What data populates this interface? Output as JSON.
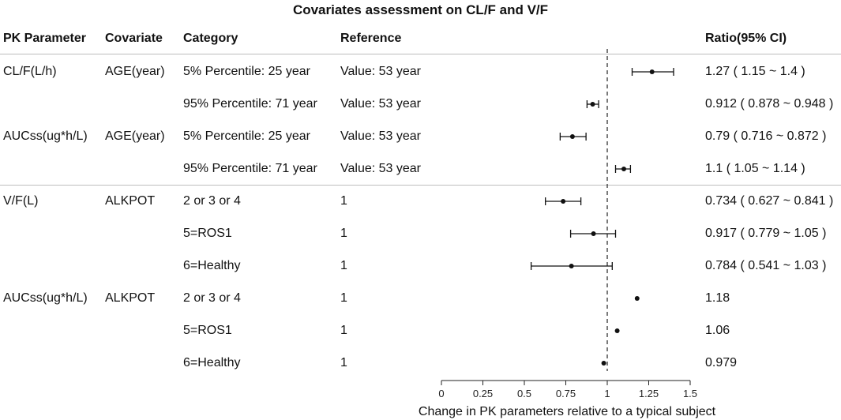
{
  "chart_data": {
    "type": "forest",
    "title": "Covariates assessment on CL/F and V/F",
    "columns": {
      "param": "PK Parameter",
      "covariate": "Covariate",
      "category": "Category",
      "reference": "Reference",
      "ratio": "Ratio(95% CI)"
    },
    "rows": [
      {
        "param": "CL/F(L/h)",
        "covariate": "AGE(year)",
        "category": "5% Percentile:  25 year",
        "reference": "Value:  53 year",
        "ratio_text": "1.27 ( 1.15 ~ 1.4 )",
        "estimate": 1.27,
        "lower": 1.15,
        "upper": 1.4
      },
      {
        "param": "",
        "covariate": "",
        "category": "95% Percentile:  71 year",
        "reference": "Value:  53 year",
        "ratio_text": "0.912 ( 0.878 ~ 0.948 )",
        "estimate": 0.912,
        "lower": 0.878,
        "upper": 0.948
      },
      {
        "param": "AUCss(ug*h/L)",
        "covariate": "AGE(year)",
        "category": "5% Percentile:  25 year",
        "reference": "Value:  53 year",
        "ratio_text": "0.79 ( 0.716 ~ 0.872 )",
        "estimate": 0.79,
        "lower": 0.716,
        "upper": 0.872
      },
      {
        "param": "",
        "covariate": "",
        "category": "95% Percentile:  71 year",
        "reference": "Value:  53 year",
        "ratio_text": "1.1 ( 1.05 ~ 1.14 )",
        "estimate": 1.1,
        "lower": 1.05,
        "upper": 1.14
      },
      {
        "param": "V/F(L)",
        "covariate": "ALKPOT",
        "category": "2 or 3 or 4",
        "reference": "1",
        "ratio_text": "0.734 ( 0.627 ~ 0.841 )",
        "estimate": 0.734,
        "lower": 0.627,
        "upper": 0.841
      },
      {
        "param": "",
        "covariate": "",
        "category": "5=ROS1",
        "reference": "1",
        "ratio_text": "0.917 ( 0.779 ~ 1.05 )",
        "estimate": 0.917,
        "lower": 0.779,
        "upper": 1.05
      },
      {
        "param": "",
        "covariate": "",
        "category": "6=Healthy",
        "reference": "1",
        "ratio_text": "0.784 ( 0.541 ~ 1.03 )",
        "estimate": 0.784,
        "lower": 0.541,
        "upper": 1.03
      },
      {
        "param": "AUCss(ug*h/L)",
        "covariate": "ALKPOT",
        "category": "2 or 3 or 4",
        "reference": "1",
        "ratio_text": "1.18",
        "estimate": 1.18,
        "lower": null,
        "upper": null
      },
      {
        "param": "",
        "covariate": "",
        "category": "5=ROS1",
        "reference": "1",
        "ratio_text": "1.06",
        "estimate": 1.06,
        "lower": null,
        "upper": null
      },
      {
        "param": "",
        "covariate": "",
        "category": "6=Healthy",
        "reference": "1",
        "ratio_text": "0.979",
        "estimate": 0.979,
        "lower": null,
        "upper": null
      }
    ],
    "xaxis": {
      "ticks": [
        0,
        0.25,
        0.5,
        0.75,
        1,
        1.25,
        1.5
      ],
      "tick_labels": [
        "0",
        "0.25",
        "0.5",
        "0.75",
        "1",
        "1.25",
        "1.5"
      ],
      "xlim": [
        0,
        1.5
      ],
      "label": "Change in PK parameters relative to a typical subject"
    },
    "reference_line": 1
  }
}
